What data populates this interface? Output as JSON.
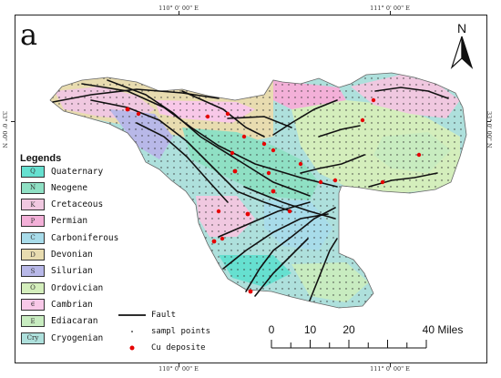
{
  "panel_label": "a",
  "coordinates": {
    "top_left": "110° 0' 00\" E",
    "top_right": "111° 0' 00\" E",
    "bottom_left": "110° 0' 00\" E",
    "bottom_right": "111° 0' 00\" E",
    "left": "33° 0' 00\" N",
    "right": "33° 0' 00\" N"
  },
  "north_label": "N",
  "legend": {
    "title": "Legends",
    "units": [
      {
        "code": "Q",
        "label": "Quaternary",
        "color": "#66e0d0"
      },
      {
        "code": "N",
        "label": "Neogene",
        "color": "#8fe0c4"
      },
      {
        "code": "K",
        "label": "Cretaceous",
        "color": "#f0c8e0"
      },
      {
        "code": "P",
        "label": "Permian",
        "color": "#f3b0d8"
      },
      {
        "code": "C",
        "label": "Carboniferous",
        "color": "#a8dcea"
      },
      {
        "code": "D",
        "label": "Devonian",
        "color": "#e8dcb0"
      },
      {
        "code": "S",
        "label": "Silurian",
        "color": "#b8b8e8"
      },
      {
        "code": "O",
        "label": "Ordovician",
        "color": "#d4eebc"
      },
      {
        "code": "∈",
        "label": "Cambrian",
        "color": "#f8c8e8"
      },
      {
        "code": "E",
        "label": "Ediacaran",
        "color": "#c8ecc0"
      },
      {
        "code": "Cry",
        "label": "Cryogenian",
        "color": "#aee0dc"
      }
    ],
    "symbols": [
      {
        "label": "Fault",
        "icon": "fault-line"
      },
      {
        "label": "sampl points",
        "icon": "sample-point"
      },
      {
        "label": "Cu deposite",
        "icon": "cu-deposit"
      }
    ]
  },
  "scale_bar": {
    "labels": [
      "0",
      "10",
      "20",
      "40 Miles"
    ],
    "values": [
      0,
      10,
      20,
      40
    ]
  }
}
